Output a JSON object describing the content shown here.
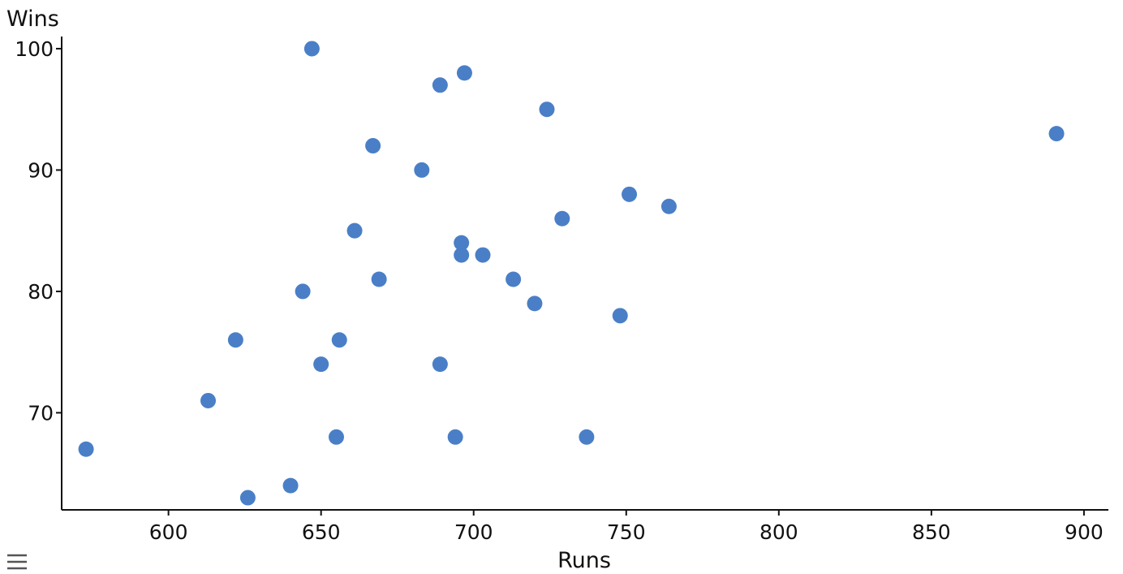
{
  "chart_data": {
    "type": "scatter",
    "title": "",
    "xlabel": "Runs",
    "ylabel": "Wins",
    "xlim": [
      565,
      908
    ],
    "ylim": [
      62,
      101
    ],
    "xticks": [
      600,
      650,
      700,
      750,
      800,
      850,
      900
    ],
    "yticks": [
      70,
      80,
      90,
      100
    ],
    "grid": false,
    "color": "#4a7fc7",
    "points": [
      {
        "x": 647,
        "y": 100
      },
      {
        "x": 697,
        "y": 98
      },
      {
        "x": 689,
        "y": 97
      },
      {
        "x": 724,
        "y": 95
      },
      {
        "x": 891,
        "y": 93
      },
      {
        "x": 667,
        "y": 92
      },
      {
        "x": 683,
        "y": 90
      },
      {
        "x": 751,
        "y": 88
      },
      {
        "x": 764,
        "y": 87
      },
      {
        "x": 729,
        "y": 86
      },
      {
        "x": 661,
        "y": 85
      },
      {
        "x": 696,
        "y": 84
      },
      {
        "x": 696,
        "y": 83
      },
      {
        "x": 703,
        "y": 83
      },
      {
        "x": 669,
        "y": 81
      },
      {
        "x": 713,
        "y": 81
      },
      {
        "x": 644,
        "y": 80
      },
      {
        "x": 720,
        "y": 79
      },
      {
        "x": 748,
        "y": 78
      },
      {
        "x": 622,
        "y": 76
      },
      {
        "x": 656,
        "y": 76
      },
      {
        "x": 650,
        "y": 74
      },
      {
        "x": 689,
        "y": 74
      },
      {
        "x": 613,
        "y": 71
      },
      {
        "x": 655,
        "y": 68
      },
      {
        "x": 694,
        "y": 68
      },
      {
        "x": 737,
        "y": 68
      },
      {
        "x": 573,
        "y": 67
      },
      {
        "x": 640,
        "y": 64
      },
      {
        "x": 626,
        "y": 63
      }
    ]
  },
  "ui": {
    "menu_icon": "hamburger-menu-icon"
  }
}
